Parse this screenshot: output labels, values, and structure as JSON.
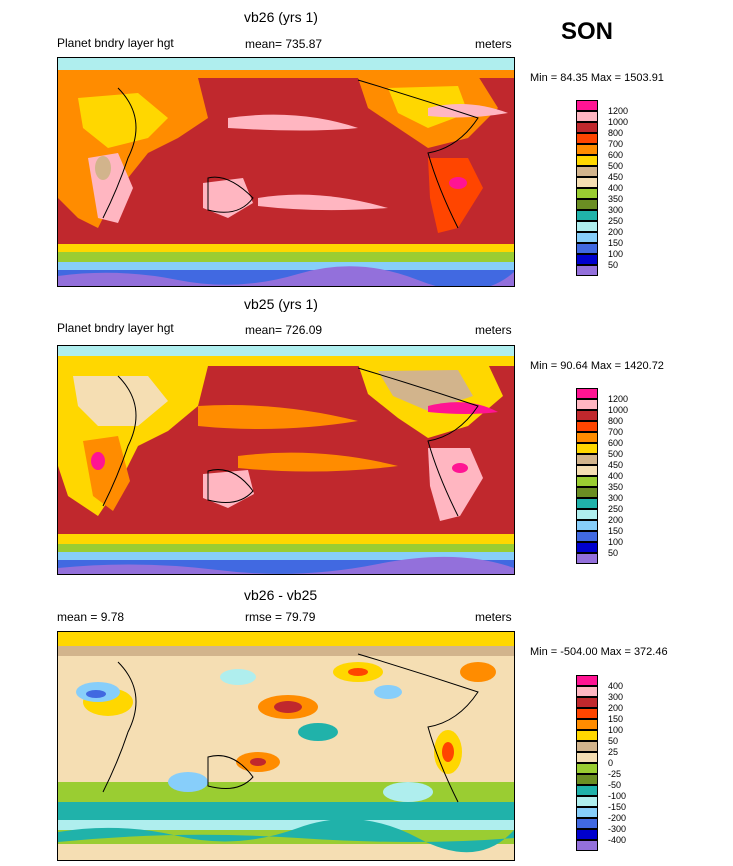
{
  "season": "SON",
  "panels": [
    {
      "title": "vb26 (yrs 1)",
      "left_label": "Planet bndry layer hgt",
      "center_label": "mean= 735.87",
      "right_label": "meters",
      "minmax": "Min =  84.35 Max = 1503.91",
      "legend": {
        "labels": [
          "1200",
          "1000",
          "800",
          "700",
          "600",
          "500",
          "450",
          "400",
          "350",
          "300",
          "250",
          "200",
          "150",
          "100",
          "50"
        ],
        "colors": [
          "#ff1493",
          "#ffb6c1",
          "#c0282d",
          "#ff4500",
          "#ff8c00",
          "#ffd700",
          "#d2b48c",
          "#f5deb3",
          "#9acd32",
          "#6b8e23",
          "#20b2aa",
          "#afeeee",
          "#87cefa",
          "#4169e1",
          "#0000cd",
          "#9370db"
        ]
      }
    },
    {
      "title": "vb25 (yrs 1)",
      "left_label": "Planet bndry layer hgt",
      "center_label": "mean= 726.09",
      "right_label": "meters",
      "minmax": "Min =  90.64 Max = 1420.72",
      "legend": {
        "labels": [
          "1200",
          "1000",
          "800",
          "700",
          "600",
          "500",
          "450",
          "400",
          "350",
          "300",
          "250",
          "200",
          "150",
          "100",
          "50"
        ],
        "colors": [
          "#ff1493",
          "#ffb6c1",
          "#c0282d",
          "#ff4500",
          "#ff8c00",
          "#ffd700",
          "#d2b48c",
          "#f5deb3",
          "#9acd32",
          "#6b8e23",
          "#20b2aa",
          "#afeeee",
          "#87cefa",
          "#4169e1",
          "#0000cd",
          "#9370db"
        ]
      }
    },
    {
      "title": "vb26 - vb25",
      "left_label": "mean =   9.78",
      "center_label": "rmse =  79.79",
      "right_label": "meters",
      "minmax": "Min = -504.00 Max = 372.46",
      "legend": {
        "labels": [
          "400",
          "300",
          "200",
          "150",
          "100",
          "50",
          "25",
          "0",
          "-25",
          "-50",
          "-100",
          "-150",
          "-200",
          "-300",
          "-400"
        ],
        "colors": [
          "#ff1493",
          "#ffb6c1",
          "#c0282d",
          "#ff4500",
          "#ff8c00",
          "#ffd700",
          "#d2b48c",
          "#f5deb3",
          "#9acd32",
          "#6b8e23",
          "#20b2aa",
          "#afeeee",
          "#87cefa",
          "#4169e1",
          "#0000cd",
          "#9370db"
        ]
      }
    }
  ]
}
